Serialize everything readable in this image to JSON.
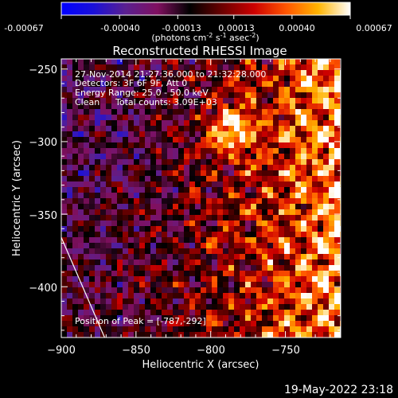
{
  "colorbar": {
    "tick_labels": [
      "-0.00067",
      "-0.00040",
      "-0.00013",
      "0.00013",
      "0.00040",
      "0.00067"
    ],
    "tick_values": [
      -0.00067,
      -0.0004,
      -0.00013,
      0.00013,
      0.0004,
      0.00067
    ],
    "range": [
      -0.00067,
      0.00067
    ],
    "units_prefix": "(photons cm",
    "units_sup1": "-2",
    "units_mid1": " s",
    "units_sup2": "-1",
    "units_mid2": " asec",
    "units_sup3": "-2",
    "units_suffix": ")",
    "colors": [
      "#0000ff",
      "#1a10d8",
      "#5a2090",
      "#801060",
      "#000000",
      "#6a0000",
      "#cc0000",
      "#ff5500",
      "#ffb400",
      "#ffffff"
    ]
  },
  "chart_data": {
    "type": "heatmap",
    "title": "Reconstructed RHESSI Image",
    "xlabel": "Heliocentric X (arcsec)",
    "ylabel": "Heliocentric Y (arcsec)",
    "xlim": [
      -900,
      -713
    ],
    "ylim": [
      -435,
      -243
    ],
    "x_ticks": [
      -900,
      -850,
      -800,
      -750
    ],
    "x_tick_labels": [
      "−900",
      "−850",
      "−800",
      "−750"
    ],
    "y_ticks": [
      -250,
      -300,
      -350,
      -400
    ],
    "y_tick_labels": [
      "−250",
      "−300",
      "−350",
      "−400"
    ],
    "limb_line": [
      [
        -900,
        -366
      ],
      [
        -871,
        -435
      ]
    ],
    "peak": {
      "x": -787,
      "y": -292
    },
    "annotations": {
      "time": "27-Nov-2014 21:27:36.000 to 21:32:28.000",
      "detectors": "Detectors: 3F 6F 9F, Att 0",
      "energy": "Energy Range: 25.0 - 50.0 keV",
      "clean": "Clean",
      "counts": "Total counts: 3.09E+03",
      "peak_label": "Position of Peak = [-787,-292]"
    }
  },
  "footer": {
    "date": "19-May-2022 23:18"
  }
}
